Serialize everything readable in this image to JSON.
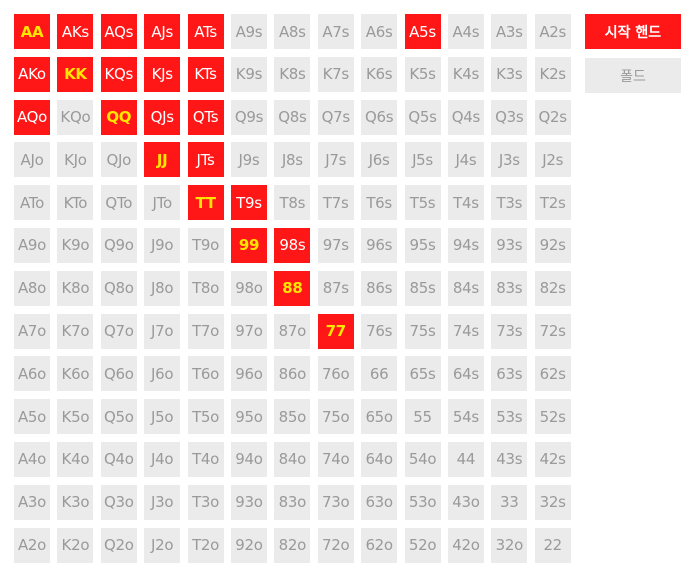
{
  "colors": {
    "start": "#ff1717",
    "fold": "#ebebeb",
    "pair_text": "#ffe600"
  },
  "legend": {
    "start_label": "시작 핸드",
    "fold_label": "폴드"
  },
  "grid": {
    "rows": [
      [
        "AA",
        "AKs",
        "AQs",
        "AJs",
        "ATs",
        "A9s",
        "A8s",
        "A7s",
        "A6s",
        "A5s",
        "A4s",
        "A3s",
        "A2s"
      ],
      [
        "AKo",
        "KK",
        "KQs",
        "KJs",
        "KTs",
        "K9s",
        "K8s",
        "K7s",
        "K6s",
        "K5s",
        "K4s",
        "K3s",
        "K2s"
      ],
      [
        "AQo",
        "KQo",
        "QQ",
        "QJs",
        "QTs",
        "Q9s",
        "Q8s",
        "Q7s",
        "Q6s",
        "Q5s",
        "Q4s",
        "Q3s",
        "Q2s"
      ],
      [
        "AJo",
        "KJo",
        "QJo",
        "JJ",
        "JTs",
        "J9s",
        "J8s",
        "J7s",
        "J6s",
        "J5s",
        "J4s",
        "J3s",
        "J2s"
      ],
      [
        "ATo",
        "KTo",
        "QTo",
        "JTo",
        "TT",
        "T9s",
        "T8s",
        "T7s",
        "T6s",
        "T5s",
        "T4s",
        "T3s",
        "T2s"
      ],
      [
        "A9o",
        "K9o",
        "Q9o",
        "J9o",
        "T9o",
        "99",
        "98s",
        "97s",
        "96s",
        "95s",
        "94s",
        "93s",
        "92s"
      ],
      [
        "A8o",
        "K8o",
        "Q8o",
        "J8o",
        "T8o",
        "98o",
        "88",
        "87s",
        "86s",
        "85s",
        "84s",
        "83s",
        "82s"
      ],
      [
        "A7o",
        "K7o",
        "Q7o",
        "J7o",
        "T7o",
        "97o",
        "87o",
        "77",
        "76s",
        "75s",
        "74s",
        "73s",
        "72s"
      ],
      [
        "A6o",
        "K6o",
        "Q6o",
        "J6o",
        "T6o",
        "96o",
        "86o",
        "76o",
        "66",
        "65s",
        "64s",
        "63s",
        "62s"
      ],
      [
        "A5o",
        "K5o",
        "Q5o",
        "J5o",
        "T5o",
        "95o",
        "85o",
        "75o",
        "65o",
        "55",
        "54s",
        "53s",
        "52s"
      ],
      [
        "A4o",
        "K4o",
        "Q4o",
        "J4o",
        "T4o",
        "94o",
        "84o",
        "74o",
        "64o",
        "54o",
        "44",
        "43s",
        "42s"
      ],
      [
        "A3o",
        "K3o",
        "Q3o",
        "J3o",
        "T3o",
        "93o",
        "83o",
        "73o",
        "63o",
        "53o",
        "43o",
        "33",
        "32s"
      ],
      [
        "A2o",
        "K2o",
        "Q2o",
        "J2o",
        "T2o",
        "92o",
        "82o",
        "72o",
        "62o",
        "52o",
        "42o",
        "32o",
        "22"
      ]
    ],
    "starting_hands": [
      "AA",
      "AKs",
      "AQs",
      "AJs",
      "ATs",
      "A5s",
      "AKo",
      "KK",
      "KQs",
      "KJs",
      "KTs",
      "AQo",
      "QQ",
      "QJs",
      "QTs",
      "JJ",
      "JTs",
      "TT",
      "T9s",
      "99",
      "98s",
      "88",
      "77"
    ]
  }
}
